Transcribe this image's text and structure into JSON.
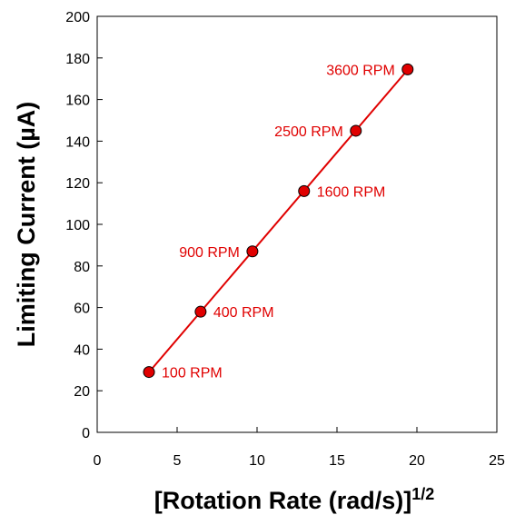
{
  "chart_data": {
    "type": "scatter",
    "xlabel": "[Rotation Rate (rad/s)]",
    "xlabel_superscript": "1/2",
    "ylabel": "Limiting Current (µA)",
    "xlim": [
      0,
      25
    ],
    "ylim": [
      0,
      200
    ],
    "xticks": [
      0,
      5,
      10,
      15,
      20,
      25
    ],
    "yticks": [
      0,
      20,
      40,
      60,
      80,
      100,
      120,
      140,
      160,
      180,
      200
    ],
    "grid": false,
    "fit_line": true,
    "color": "#e00000",
    "series": [
      {
        "points": [
          {
            "x": 3.24,
            "y": 29,
            "label": "100 RPM"
          },
          {
            "x": 6.47,
            "y": 58,
            "label": "400 RPM"
          },
          {
            "x": 9.71,
            "y": 87,
            "label": "900 RPM"
          },
          {
            "x": 12.94,
            "y": 116,
            "label": "1600 RPM"
          },
          {
            "x": 16.18,
            "y": 145,
            "label": "2500 RPM"
          },
          {
            "x": 19.42,
            "y": 174.5,
            "label": "3600 RPM"
          }
        ]
      }
    ]
  }
}
